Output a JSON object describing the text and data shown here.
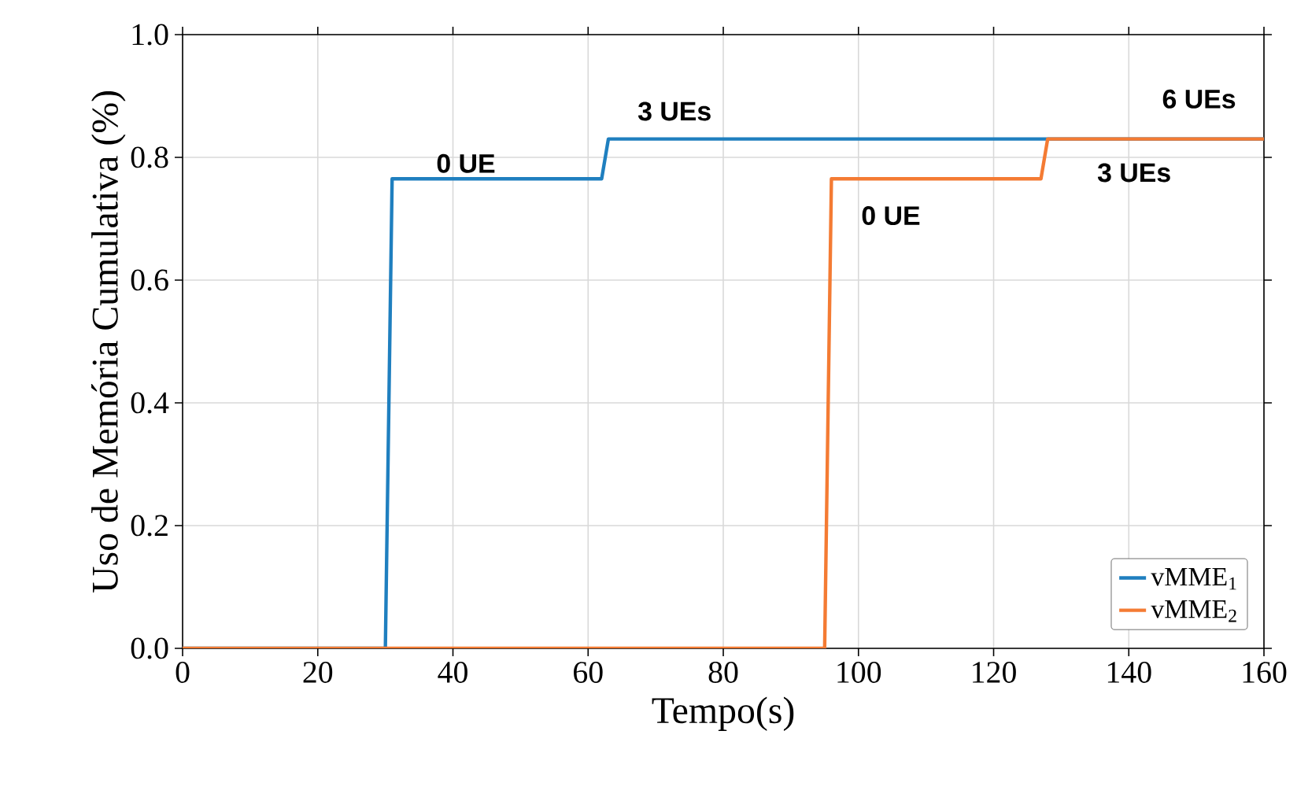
{
  "chart_data": {
    "type": "line",
    "xlabel": "Tempo(s)",
    "ylabel": "Uso de Memória Cumulativa (%)",
    "series": [
      {
        "name": "vMME$_{1}$",
        "color": "#1f7fbf",
        "x": [
          0,
          30,
          31,
          62,
          63,
          160
        ],
        "values": [
          0,
          0,
          0.765,
          0.765,
          0.83,
          0.83
        ]
      },
      {
        "name": "vMME$_{2}$",
        "color": "#f47b33",
        "x": [
          0,
          95,
          96,
          127,
          128,
          160
        ],
        "values": [
          0,
          0,
          0.765,
          0.765,
          0.83,
          0.83
        ]
      }
    ],
    "annotations": [
      "0 UE",
      "3 UEs",
      "0 UE",
      "3 UEs",
      "6 UEs"
    ],
    "xlim": [
      0,
      160
    ],
    "ylim": [
      0,
      1.0
    ],
    "xticks": [
      0,
      20,
      40,
      60,
      80,
      100,
      120,
      140,
      160
    ],
    "yticks": [
      {
        "value": 0,
        "label": "0.0"
      },
      {
        "value": 0.2,
        "label": "0.2"
      },
      {
        "value": 0.4,
        "label": "0.4"
      },
      {
        "value": 0.6,
        "label": "0.6"
      },
      {
        "value": 0.8,
        "label": "0.8"
      },
      {
        "value": 1.0,
        "label": "1.0"
      }
    ],
    "grid": true,
    "legend": "bottom right",
    "marker": "none",
    "line_style": "solid"
  }
}
